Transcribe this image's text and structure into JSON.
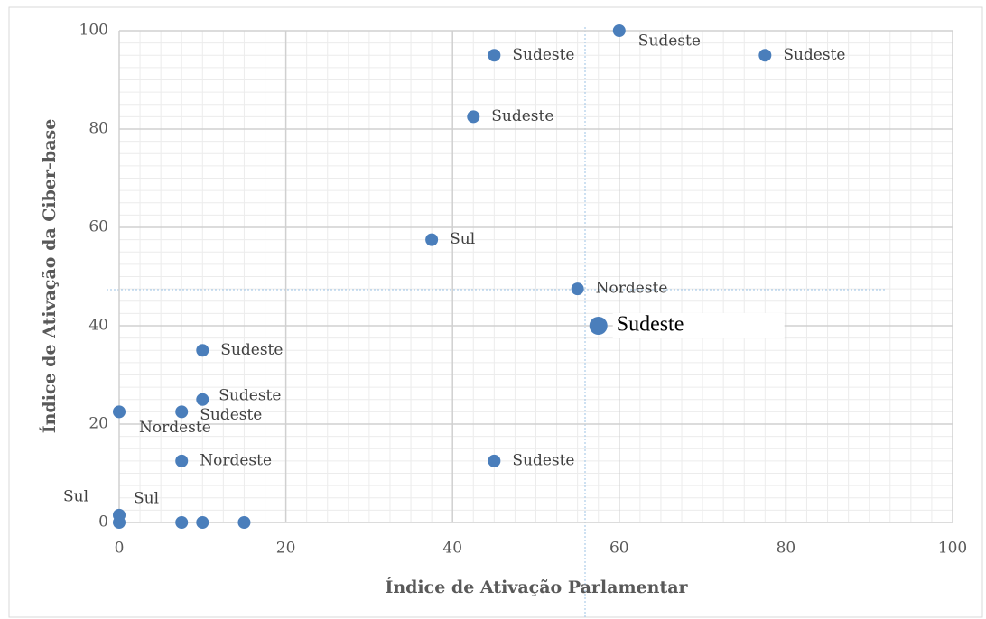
{
  "chart_data": {
    "type": "scatter",
    "x_label": "Índice de Ativação Parlamentar",
    "y_label": "Índice  de Ativação da Ciber-base",
    "x": [
      60,
      45,
      77.5,
      42.5,
      37.5,
      55,
      57.5,
      10,
      10,
      7.5,
      0,
      7.5,
      45,
      0,
      0,
      7.5,
      10,
      15
    ],
    "y": [
      100,
      95,
      95,
      82.5,
      57.5,
      47.5,
      40,
      35,
      25,
      22.5,
      22.5,
      12.5,
      12.5,
      1.5,
      0,
      0,
      0,
      0
    ],
    "labels": [
      "Sudeste",
      "Sudeste",
      "Sudeste",
      "Sudeste",
      "Sul",
      "Nordeste",
      "Sudeste",
      "Sudeste",
      "Sudeste",
      "Sudeste",
      "Nordeste",
      "Nordeste",
      "Sudeste",
      "Sul",
      "Sul",
      null,
      null,
      null
    ],
    "color": "#4a7ebb",
    "highlight_index": 6,
    "xlim": [
      0,
      100
    ],
    "xticks": [
      0,
      20,
      40,
      60,
      80,
      100
    ],
    "ylim": [
      0,
      100
    ],
    "yticks": [
      0,
      20,
      40,
      60,
      80,
      100
    ],
    "grid": true
  }
}
